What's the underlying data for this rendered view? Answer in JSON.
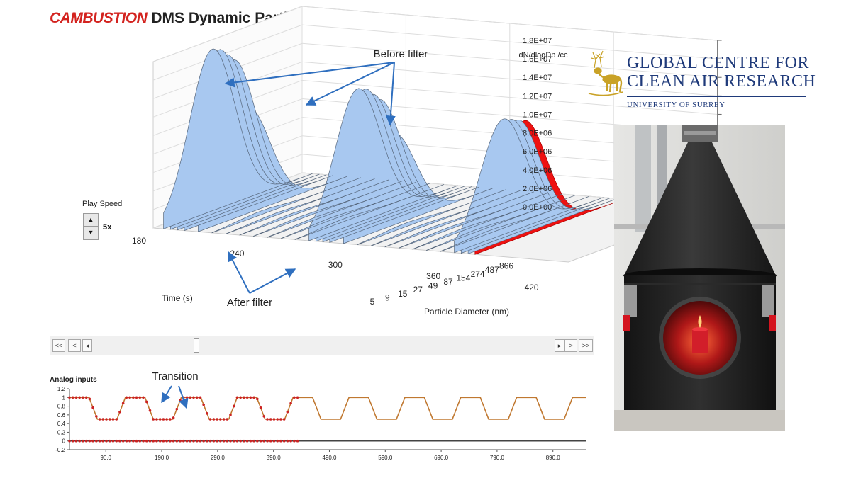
{
  "header": {
    "brand": "CAMBUSTION",
    "title": "DMS Dynamic Particle Spectrum"
  },
  "controls": {
    "play_speed_label": "Play Speed",
    "play_speed_value": "5x",
    "spinner_up": "▲",
    "spinner_down": "▼",
    "nav_buttons": [
      "<<",
      "<",
      "◂",
      "▸",
      ">",
      ">>"
    ],
    "scroll_position": 0.22
  },
  "annotations": {
    "before_filter": "Before filter",
    "after_filter": "After filter",
    "transition": "Transition"
  },
  "logo": {
    "line1": "GLOBAL CENTRE FOR",
    "line2": "CLEAN AIR RESEARCH",
    "sub": "UNIVERSITY OF SURREY",
    "emblem": "stag-icon",
    "color": "#1f3a7a"
  },
  "photo": {
    "subject": "black conical chamber with red candle",
    "icon": "candle-chamber-photo"
  },
  "chart_data": [
    {
      "type": "area",
      "name": "spectrum-3d",
      "zlabel": "dN/dlogDp /cc",
      "xlabel": "Time (s)",
      "ylabel": "Particle Diameter (nm)",
      "time_ticks": [
        "180",
        "240",
        "300",
        "360",
        "420"
      ],
      "diameter_ticks": [
        "5",
        "9",
        "15",
        "27",
        "49",
        "87",
        "154",
        "274",
        "487",
        "866"
      ],
      "z_ticks": [
        "0.0E+00",
        "2.0E+06",
        "4.0E+06",
        "6.0E+06",
        "8.0E+06",
        "1.0E+07",
        "1.2E+07",
        "1.4E+07",
        "1.6E+07",
        "1.8E+07"
      ],
      "zlim": [
        0,
        18000000
      ],
      "fill_color": "#a8c8f0",
      "highlight_color": "#ee1111",
      "slices": [
        {
          "time": 186,
          "peak": 17500000,
          "kind": "before"
        },
        {
          "time": 190,
          "peak": 17500000,
          "kind": "before"
        },
        {
          "time": 194,
          "peak": 17000000,
          "kind": "before"
        },
        {
          "time": 198,
          "peak": 16500000,
          "kind": "before"
        },
        {
          "time": 206,
          "peak": 11500000,
          "kind": "transition"
        },
        {
          "time": 214,
          "peak": 400000,
          "kind": "after"
        },
        {
          "time": 222,
          "peak": 250000,
          "kind": "after"
        },
        {
          "time": 230,
          "peak": 250000,
          "kind": "after"
        },
        {
          "time": 238,
          "peak": 250000,
          "kind": "after"
        },
        {
          "time": 246,
          "peak": 250000,
          "kind": "after"
        },
        {
          "time": 254,
          "peak": 250000,
          "kind": "after"
        },
        {
          "time": 262,
          "peak": 300000,
          "kind": "after"
        },
        {
          "time": 270,
          "peak": 14500000,
          "kind": "before"
        },
        {
          "time": 274,
          "peak": 14500000,
          "kind": "before"
        },
        {
          "time": 278,
          "peak": 14000000,
          "kind": "before"
        },
        {
          "time": 282,
          "peak": 13500000,
          "kind": "before"
        },
        {
          "time": 290,
          "peak": 10000000,
          "kind": "transition"
        },
        {
          "time": 298,
          "peak": 400000,
          "kind": "after"
        },
        {
          "time": 306,
          "peak": 250000,
          "kind": "after"
        },
        {
          "time": 314,
          "peak": 250000,
          "kind": "after"
        },
        {
          "time": 322,
          "peak": 250000,
          "kind": "after"
        },
        {
          "time": 330,
          "peak": 250000,
          "kind": "after"
        },
        {
          "time": 338,
          "peak": 250000,
          "kind": "after"
        },
        {
          "time": 346,
          "peak": 300000,
          "kind": "after"
        },
        {
          "time": 354,
          "peak": 12500000,
          "kind": "before"
        },
        {
          "time": 358,
          "peak": 12500000,
          "kind": "before"
        },
        {
          "time": 362,
          "peak": 12500000,
          "kind": "before"
        },
        {
          "time": 366,
          "peak": 12500000,
          "kind": "current"
        }
      ],
      "slice_diameter_center": 27,
      "slice_diameter_spread": 0.34
    },
    {
      "type": "line",
      "name": "analog-inputs",
      "title": "Analog inputs",
      "x_ticks": [
        "90.0",
        "190.0",
        "290.0",
        "390.0",
        "490.0",
        "590.0",
        "690.0",
        "790.0",
        "890.0"
      ],
      "x_tick_values": [
        90,
        190,
        290,
        390,
        490,
        590,
        690,
        790,
        890
      ],
      "y_ticks": [
        "1.2",
        "1",
        "0.8",
        "0.6",
        "0.4",
        "0.2",
        "0",
        "-0.2"
      ],
      "ylim": [
        -0.2,
        1.2
      ],
      "xlim": [
        25,
        950
      ],
      "series": [
        {
          "color": "#c07830",
          "marker_color": "#cc2222",
          "marker_until": 435,
          "x": [
            25,
            55,
            60,
            75,
            90,
            100,
            110,
            125,
            140,
            150,
            160,
            175,
            190,
            200,
            210,
            225,
            240,
            250,
            260,
            275,
            290,
            300,
            310,
            325,
            340,
            350,
            360,
            375,
            390,
            400,
            410,
            425,
            440,
            450,
            460,
            475,
            490,
            500,
            510,
            525,
            540,
            550,
            560,
            575,
            590,
            600,
            610,
            625,
            640,
            650,
            660,
            675,
            690,
            700,
            710,
            725,
            740,
            750,
            760,
            775,
            790,
            800,
            810,
            825,
            840,
            850,
            860,
            875,
            890,
            900,
            910,
            925,
            940,
            950
          ],
          "y": [
            1,
            1,
            1,
            0.5,
            0.5,
            0.5,
            0.5,
            1,
            1,
            1,
            1,
            0.5,
            0.5,
            0.5,
            0.5,
            1,
            1,
            1,
            1,
            0.5,
            0.5,
            0.5,
            0.5,
            1,
            1,
            1,
            1,
            0.5,
            0.5,
            0.5,
            0.5,
            1,
            1,
            1,
            1,
            0.5,
            0.5,
            0.5,
            0.5,
            1,
            1,
            1,
            1,
            0.5,
            0.5,
            0.5,
            0.5,
            1,
            1,
            1,
            1,
            0.5,
            0.5,
            0.5,
            0.5,
            1,
            1,
            1,
            1,
            0.5,
            0.5,
            0.5,
            0.5,
            1,
            1,
            1,
            1,
            0.5,
            0.5,
            0.5,
            0.5,
            1,
            1,
            1
          ]
        },
        {
          "color": "#444444",
          "marker_color": "#cc2222",
          "marker_until": 435,
          "x": [
            25,
            950
          ],
          "y": [
            0,
            0
          ]
        }
      ]
    }
  ]
}
